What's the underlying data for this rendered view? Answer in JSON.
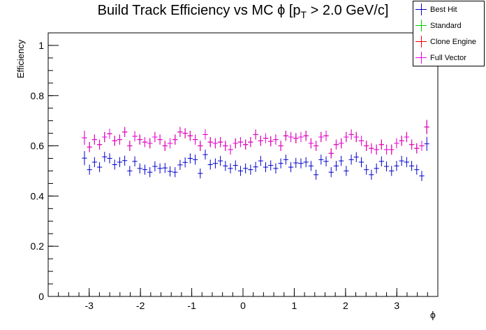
{
  "chart_data": {
    "type": "scatter",
    "title": "Build Track Efficiency vs MC ϕ [p_T > 2.0 GeV/c]",
    "title_parts": {
      "pre": "Build Track Efficiency vs MC ϕ [p",
      "sub": "T",
      "post": " > 2.0 GeV/c]"
    },
    "xlabel": "ϕ",
    "ylabel": "Efficiency",
    "xlim": [
      -3.8,
      3.8
    ],
    "ylim": [
      0,
      1.05
    ],
    "xticks": [
      -3,
      -2,
      -1,
      0,
      1,
      2,
      3
    ],
    "xtick_labels": [
      "-3",
      "-2",
      "-1",
      "0",
      "1",
      "2",
      "3"
    ],
    "yticks": [
      0,
      0.2,
      0.4,
      0.6,
      0.8,
      1
    ],
    "ytick_labels": [
      "0",
      "0.2",
      "0.4",
      "0.6",
      "0.8",
      "1"
    ],
    "x_bin_width": 0.0982,
    "x_range": [
      -3.1416,
      3.1416
    ],
    "legend_position": "top-right",
    "grid": false,
    "series": [
      {
        "name": "Best Hit",
        "color": "#0000cc",
        "values": [
          0.551,
          0.505,
          0.535,
          0.515,
          0.556,
          0.55,
          0.525,
          0.535,
          0.541,
          0.5,
          0.538,
          0.51,
          0.505,
          0.495,
          0.518,
          0.51,
          0.512,
          0.498,
          0.495,
          0.524,
          0.534,
          0.55,
          0.545,
          0.49,
          0.565,
          0.525,
          0.53,
          0.54,
          0.52,
          0.51,
          0.522,
          0.5,
          0.51,
          0.505,
          0.516,
          0.54,
          0.515,
          0.522,
          0.51,
          0.53,
          0.545,
          0.515,
          0.532,
          0.53,
          0.535,
          0.52,
          0.485,
          0.545,
          0.538,
          0.495,
          0.52,
          0.54,
          0.5,
          0.545,
          0.555,
          0.535,
          0.505,
          0.485,
          0.51,
          0.538,
          0.518,
          0.5,
          0.52,
          0.54,
          0.535,
          0.52,
          0.505,
          0.48,
          0.608
        ],
        "errors": [
          0.028,
          0.02,
          0.02,
          0.02,
          0.02,
          0.02,
          0.02,
          0.02,
          0.02,
          0.02,
          0.02,
          0.02,
          0.02,
          0.02,
          0.02,
          0.02,
          0.02,
          0.02,
          0.02,
          0.02,
          0.02,
          0.02,
          0.02,
          0.02,
          0.02,
          0.02,
          0.02,
          0.02,
          0.02,
          0.02,
          0.02,
          0.02,
          0.02,
          0.02,
          0.02,
          0.02,
          0.02,
          0.02,
          0.02,
          0.02,
          0.02,
          0.02,
          0.02,
          0.02,
          0.02,
          0.02,
          0.02,
          0.02,
          0.02,
          0.02,
          0.02,
          0.02,
          0.02,
          0.02,
          0.02,
          0.02,
          0.02,
          0.02,
          0.02,
          0.02,
          0.02,
          0.02,
          0.02,
          0.02,
          0.02,
          0.02,
          0.02,
          0.02,
          0.028
        ]
      },
      {
        "name": "Standard",
        "color": "#00cc00",
        "values": [
          0.632,
          0.595,
          0.625,
          0.605,
          0.635,
          0.648,
          0.62,
          0.625,
          0.655,
          0.6,
          0.638,
          0.625,
          0.615,
          0.61,
          0.635,
          0.625,
          0.6,
          0.61,
          0.625,
          0.655,
          0.65,
          0.64,
          0.625,
          0.6,
          0.645,
          0.615,
          0.61,
          0.615,
          0.6,
          0.585,
          0.61,
          0.615,
          0.605,
          0.615,
          0.645,
          0.62,
          0.63,
          0.618,
          0.625,
          0.6,
          0.64,
          0.635,
          0.63,
          0.635,
          0.64,
          0.61,
          0.6,
          0.635,
          0.64,
          0.57,
          0.605,
          0.61,
          0.635,
          0.645,
          0.635,
          0.62,
          0.6,
          0.59,
          0.585,
          0.605,
          0.585,
          0.585,
          0.61,
          0.62,
          0.635,
          0.605,
          0.59,
          0.6,
          0.675
        ],
        "errors": [
          0.028,
          0.02,
          0.02,
          0.02,
          0.02,
          0.02,
          0.02,
          0.02,
          0.02,
          0.02,
          0.02,
          0.02,
          0.02,
          0.02,
          0.02,
          0.02,
          0.02,
          0.02,
          0.02,
          0.02,
          0.02,
          0.02,
          0.02,
          0.02,
          0.02,
          0.02,
          0.02,
          0.02,
          0.02,
          0.02,
          0.02,
          0.02,
          0.02,
          0.02,
          0.02,
          0.02,
          0.02,
          0.02,
          0.02,
          0.02,
          0.02,
          0.02,
          0.02,
          0.02,
          0.02,
          0.02,
          0.02,
          0.02,
          0.02,
          0.02,
          0.02,
          0.02,
          0.02,
          0.02,
          0.02,
          0.02,
          0.02,
          0.02,
          0.02,
          0.02,
          0.02,
          0.02,
          0.02,
          0.02,
          0.02,
          0.02,
          0.02,
          0.02,
          0.028
        ]
      },
      {
        "name": "Clone Engine",
        "color": "#ff0000",
        "values": [
          0.632,
          0.595,
          0.625,
          0.605,
          0.635,
          0.648,
          0.62,
          0.625,
          0.655,
          0.6,
          0.638,
          0.625,
          0.615,
          0.61,
          0.635,
          0.625,
          0.6,
          0.61,
          0.625,
          0.655,
          0.65,
          0.64,
          0.625,
          0.6,
          0.645,
          0.615,
          0.61,
          0.615,
          0.6,
          0.585,
          0.61,
          0.615,
          0.605,
          0.615,
          0.645,
          0.62,
          0.63,
          0.618,
          0.625,
          0.6,
          0.64,
          0.635,
          0.63,
          0.635,
          0.64,
          0.61,
          0.6,
          0.635,
          0.64,
          0.57,
          0.605,
          0.61,
          0.635,
          0.645,
          0.635,
          0.62,
          0.6,
          0.59,
          0.585,
          0.605,
          0.585,
          0.585,
          0.61,
          0.62,
          0.635,
          0.605,
          0.59,
          0.6,
          0.675
        ],
        "errors": [
          0.028,
          0.02,
          0.02,
          0.02,
          0.02,
          0.02,
          0.02,
          0.02,
          0.02,
          0.02,
          0.02,
          0.02,
          0.02,
          0.02,
          0.02,
          0.02,
          0.02,
          0.02,
          0.02,
          0.02,
          0.02,
          0.02,
          0.02,
          0.02,
          0.02,
          0.02,
          0.02,
          0.02,
          0.02,
          0.02,
          0.02,
          0.02,
          0.02,
          0.02,
          0.02,
          0.02,
          0.02,
          0.02,
          0.02,
          0.02,
          0.02,
          0.02,
          0.02,
          0.02,
          0.02,
          0.02,
          0.02,
          0.02,
          0.02,
          0.02,
          0.02,
          0.02,
          0.02,
          0.02,
          0.02,
          0.02,
          0.02,
          0.02,
          0.02,
          0.02,
          0.02,
          0.02,
          0.02,
          0.02,
          0.02,
          0.02,
          0.02,
          0.02,
          0.028
        ]
      },
      {
        "name": "Full Vector",
        "color": "#ee00ee",
        "values": [
          0.632,
          0.595,
          0.625,
          0.605,
          0.635,
          0.648,
          0.62,
          0.625,
          0.655,
          0.6,
          0.638,
          0.625,
          0.615,
          0.61,
          0.635,
          0.625,
          0.6,
          0.61,
          0.625,
          0.655,
          0.65,
          0.64,
          0.625,
          0.6,
          0.645,
          0.615,
          0.61,
          0.615,
          0.6,
          0.585,
          0.61,
          0.615,
          0.605,
          0.615,
          0.645,
          0.62,
          0.63,
          0.618,
          0.625,
          0.6,
          0.64,
          0.635,
          0.63,
          0.635,
          0.64,
          0.61,
          0.6,
          0.635,
          0.64,
          0.57,
          0.605,
          0.61,
          0.635,
          0.645,
          0.635,
          0.62,
          0.6,
          0.59,
          0.585,
          0.605,
          0.585,
          0.585,
          0.61,
          0.62,
          0.635,
          0.605,
          0.59,
          0.6,
          0.675
        ],
        "errors": [
          0.028,
          0.02,
          0.02,
          0.02,
          0.02,
          0.02,
          0.02,
          0.02,
          0.02,
          0.02,
          0.02,
          0.02,
          0.02,
          0.02,
          0.02,
          0.02,
          0.02,
          0.02,
          0.02,
          0.02,
          0.02,
          0.02,
          0.02,
          0.02,
          0.02,
          0.02,
          0.02,
          0.02,
          0.02,
          0.02,
          0.02,
          0.02,
          0.02,
          0.02,
          0.02,
          0.02,
          0.02,
          0.02,
          0.02,
          0.02,
          0.02,
          0.02,
          0.02,
          0.02,
          0.02,
          0.02,
          0.02,
          0.02,
          0.02,
          0.02,
          0.02,
          0.02,
          0.02,
          0.02,
          0.02,
          0.02,
          0.02,
          0.02,
          0.02,
          0.02,
          0.02,
          0.02,
          0.02,
          0.02,
          0.02,
          0.02,
          0.02,
          0.02,
          0.028
        ]
      }
    ]
  }
}
